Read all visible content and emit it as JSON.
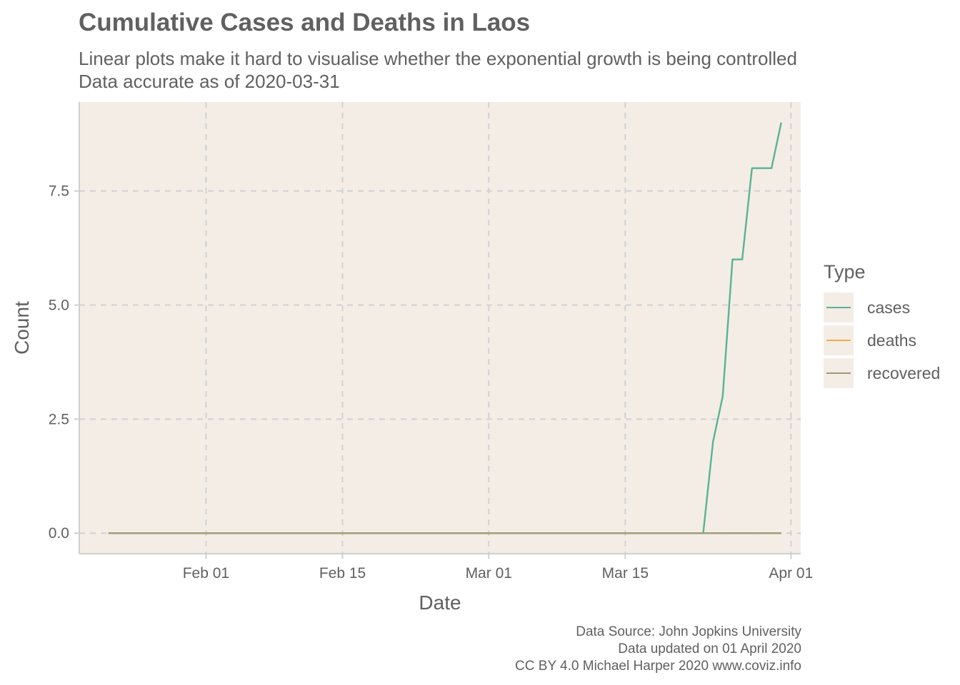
{
  "title": "Cumulative Cases and Deaths in Laos",
  "subtitle": [
    "Linear plots make it hard to visualise whether the exponential growth is being controlled",
    "Data accurate as of 2020-03-31"
  ],
  "caption": [
    "Data Source: John Jopkins University",
    "Data updated on 01 April 2020",
    "CC BY 4.0 Michael Harper 2020 www.coviz.info"
  ],
  "legend": {
    "title": "Type",
    "items": [
      {
        "label": "cases",
        "color": "#5ab392"
      },
      {
        "label": "deaths",
        "color": "#f5ac47"
      },
      {
        "label": "recovered",
        "color": "#a09a78"
      }
    ]
  },
  "colors": {
    "panel_background": "#f3ede6",
    "grid": "#d2d2d2",
    "axis": "#cfcfcf",
    "text": "#606060"
  },
  "chart_data": {
    "type": "line",
    "title": "Cumulative Cases and Deaths in Laos",
    "xlabel": "Date",
    "ylabel": "Count",
    "x_type": "date",
    "xlim": [
      "2020-01-19",
      "2020-04-02"
    ],
    "ylim": [
      -0.45,
      9.45
    ],
    "x_ticks": [
      {
        "date": "2020-02-01",
        "label": "Feb 01"
      },
      {
        "date": "2020-02-15",
        "label": "Feb 15"
      },
      {
        "date": "2020-03-01",
        "label": "Mar 01"
      },
      {
        "date": "2020-03-15",
        "label": "Mar 15"
      },
      {
        "date": "2020-04-01",
        "label": "Apr 01"
      }
    ],
    "y_ticks": [
      {
        "value": 0,
        "label": "0.0"
      },
      {
        "value": 2.5,
        "label": "2.5"
      },
      {
        "value": 5,
        "label": "5.0"
      },
      {
        "value": 7.5,
        "label": "7.5"
      }
    ],
    "grid": true,
    "legend_position": "right",
    "series": [
      {
        "name": "cases",
        "points": [
          {
            "x": "2020-01-22",
            "y": 0
          },
          {
            "x": "2020-03-23",
            "y": 0
          },
          {
            "x": "2020-03-24",
            "y": 2
          },
          {
            "x": "2020-03-25",
            "y": 3
          },
          {
            "x": "2020-03-26",
            "y": 6
          },
          {
            "x": "2020-03-27",
            "y": 6
          },
          {
            "x": "2020-03-28",
            "y": 8
          },
          {
            "x": "2020-03-29",
            "y": 8
          },
          {
            "x": "2020-03-30",
            "y": 8
          },
          {
            "x": "2020-03-31",
            "y": 9
          }
        ]
      },
      {
        "name": "deaths",
        "points": [
          {
            "x": "2020-01-22",
            "y": 0
          },
          {
            "x": "2020-03-31",
            "y": 0
          }
        ]
      },
      {
        "name": "recovered",
        "points": [
          {
            "x": "2020-01-22",
            "y": 0
          },
          {
            "x": "2020-03-31",
            "y": 0
          }
        ]
      }
    ]
  }
}
